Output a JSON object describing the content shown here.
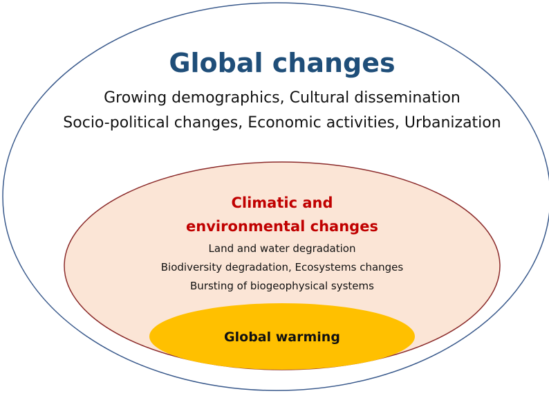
{
  "outer": {
    "title": "Global changes",
    "lines": [
      "Growing demographics, Cultural dissemination",
      "Socio-political changes, Economic activities, Urbanization"
    ]
  },
  "middle": {
    "title": [
      "Climatic and",
      "environmental changes"
    ],
    "lines": [
      "Land and water degradation",
      "Biodiversity degradation, Ecosystems changes",
      "Bursting of biogeophysical systems"
    ]
  },
  "inner": {
    "title": "Global warming"
  }
}
